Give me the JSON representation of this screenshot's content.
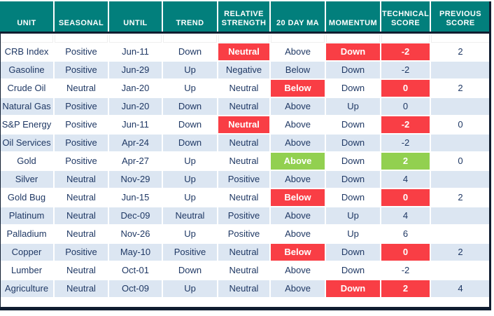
{
  "colors": {
    "header_bg": "#027f7c",
    "text_navy": "#1f3864",
    "row_alt_blue": "#dce6f2",
    "highlight_red": "#f93e45",
    "highlight_green": "#92d050",
    "frame_border": "#101d30"
  },
  "table": {
    "columns": [
      "UNIT",
      "SEASONAL",
      "UNTIL",
      "TREND",
      "RELATIVE STRENGTH",
      "20 DAY MA",
      "MOMENTUM",
      "TECHNICAL SCORE",
      "PREVIOUS SCORE"
    ],
    "rows": [
      [
        {
          "t": "CRB Index"
        },
        {
          "t": "Positive"
        },
        {
          "t": "Jun-11"
        },
        {
          "t": "Down"
        },
        {
          "t": "Neutral",
          "h": "red"
        },
        {
          "t": "Above"
        },
        {
          "t": "Down",
          "h": "red"
        },
        {
          "t": "-2",
          "h": "red"
        },
        {
          "t": "2"
        }
      ],
      [
        {
          "t": "Gasoline"
        },
        {
          "t": "Positive"
        },
        {
          "t": "Jun-29"
        },
        {
          "t": "Up"
        },
        {
          "t": "Negative"
        },
        {
          "t": "Below"
        },
        {
          "t": "Down"
        },
        {
          "t": "-2"
        },
        {
          "t": ""
        }
      ],
      [
        {
          "t": "Crude Oil"
        },
        {
          "t": "Neutral"
        },
        {
          "t": "Jan-20"
        },
        {
          "t": "Up"
        },
        {
          "t": "Neutral"
        },
        {
          "t": "Below",
          "h": "red"
        },
        {
          "t": "Down"
        },
        {
          "t": "0",
          "h": "red"
        },
        {
          "t": "2"
        }
      ],
      [
        {
          "t": "Natural Gas"
        },
        {
          "t": "Positive"
        },
        {
          "t": "Jun-20"
        },
        {
          "t": "Down"
        },
        {
          "t": "Neutral"
        },
        {
          "t": "Above"
        },
        {
          "t": "Up"
        },
        {
          "t": "0"
        },
        {
          "t": ""
        }
      ],
      [
        {
          "t": "S&P Energy"
        },
        {
          "t": "Positive"
        },
        {
          "t": "Jun-11"
        },
        {
          "t": "Down"
        },
        {
          "t": "Neutral",
          "h": "red"
        },
        {
          "t": "Above"
        },
        {
          "t": "Down"
        },
        {
          "t": "-2",
          "h": "red"
        },
        {
          "t": "0"
        }
      ],
      [
        {
          "t": "Oil Services"
        },
        {
          "t": "Positive"
        },
        {
          "t": "Apr-24"
        },
        {
          "t": "Down"
        },
        {
          "t": "Neutral"
        },
        {
          "t": "Above"
        },
        {
          "t": "Down"
        },
        {
          "t": "-2"
        },
        {
          "t": ""
        }
      ],
      [
        {
          "t": "Gold"
        },
        {
          "t": "Positive"
        },
        {
          "t": "Apr-27"
        },
        {
          "t": "Up"
        },
        {
          "t": "Neutral"
        },
        {
          "t": "Above",
          "h": "green"
        },
        {
          "t": "Down"
        },
        {
          "t": "2",
          "h": "green"
        },
        {
          "t": "0"
        }
      ],
      [
        {
          "t": "Silver"
        },
        {
          "t": "Neutral"
        },
        {
          "t": "Nov-29"
        },
        {
          "t": "Up"
        },
        {
          "t": "Positive"
        },
        {
          "t": "Above"
        },
        {
          "t": "Down"
        },
        {
          "t": "4"
        },
        {
          "t": ""
        }
      ],
      [
        {
          "t": "Gold Bug"
        },
        {
          "t": "Neutral"
        },
        {
          "t": "Jun-15"
        },
        {
          "t": "Up"
        },
        {
          "t": "Neutral"
        },
        {
          "t": "Below",
          "h": "red"
        },
        {
          "t": "Down"
        },
        {
          "t": "0",
          "h": "red"
        },
        {
          "t": "2"
        }
      ],
      [
        {
          "t": "Platinum"
        },
        {
          "t": "Neutral"
        },
        {
          "t": "Dec-09"
        },
        {
          "t": "Neutral"
        },
        {
          "t": "Positive"
        },
        {
          "t": "Above"
        },
        {
          "t": "Up"
        },
        {
          "t": "4"
        },
        {
          "t": ""
        }
      ],
      [
        {
          "t": "Palladium"
        },
        {
          "t": "Neutral"
        },
        {
          "t": "Nov-26"
        },
        {
          "t": "Up"
        },
        {
          "t": "Positive"
        },
        {
          "t": "Above"
        },
        {
          "t": "Up"
        },
        {
          "t": "6"
        },
        {
          "t": ""
        }
      ],
      [
        {
          "t": "Copper"
        },
        {
          "t": "Positive"
        },
        {
          "t": "May-10"
        },
        {
          "t": "Positive"
        },
        {
          "t": "Neutral"
        },
        {
          "t": "Below",
          "h": "red"
        },
        {
          "t": "Down"
        },
        {
          "t": "0",
          "h": "red"
        },
        {
          "t": "2"
        }
      ],
      [
        {
          "t": "Lumber"
        },
        {
          "t": "Neutral"
        },
        {
          "t": "Oct-01"
        },
        {
          "t": "Down"
        },
        {
          "t": "Neutral"
        },
        {
          "t": "Above"
        },
        {
          "t": "Down"
        },
        {
          "t": "-2"
        },
        {
          "t": ""
        }
      ],
      [
        {
          "t": "Agriculture"
        },
        {
          "t": "Neutral"
        },
        {
          "t": "Oct-09"
        },
        {
          "t": "Up"
        },
        {
          "t": "Neutral"
        },
        {
          "t": "Above"
        },
        {
          "t": "Down",
          "h": "red"
        },
        {
          "t": "2",
          "h": "red"
        },
        {
          "t": "4"
        }
      ]
    ]
  }
}
